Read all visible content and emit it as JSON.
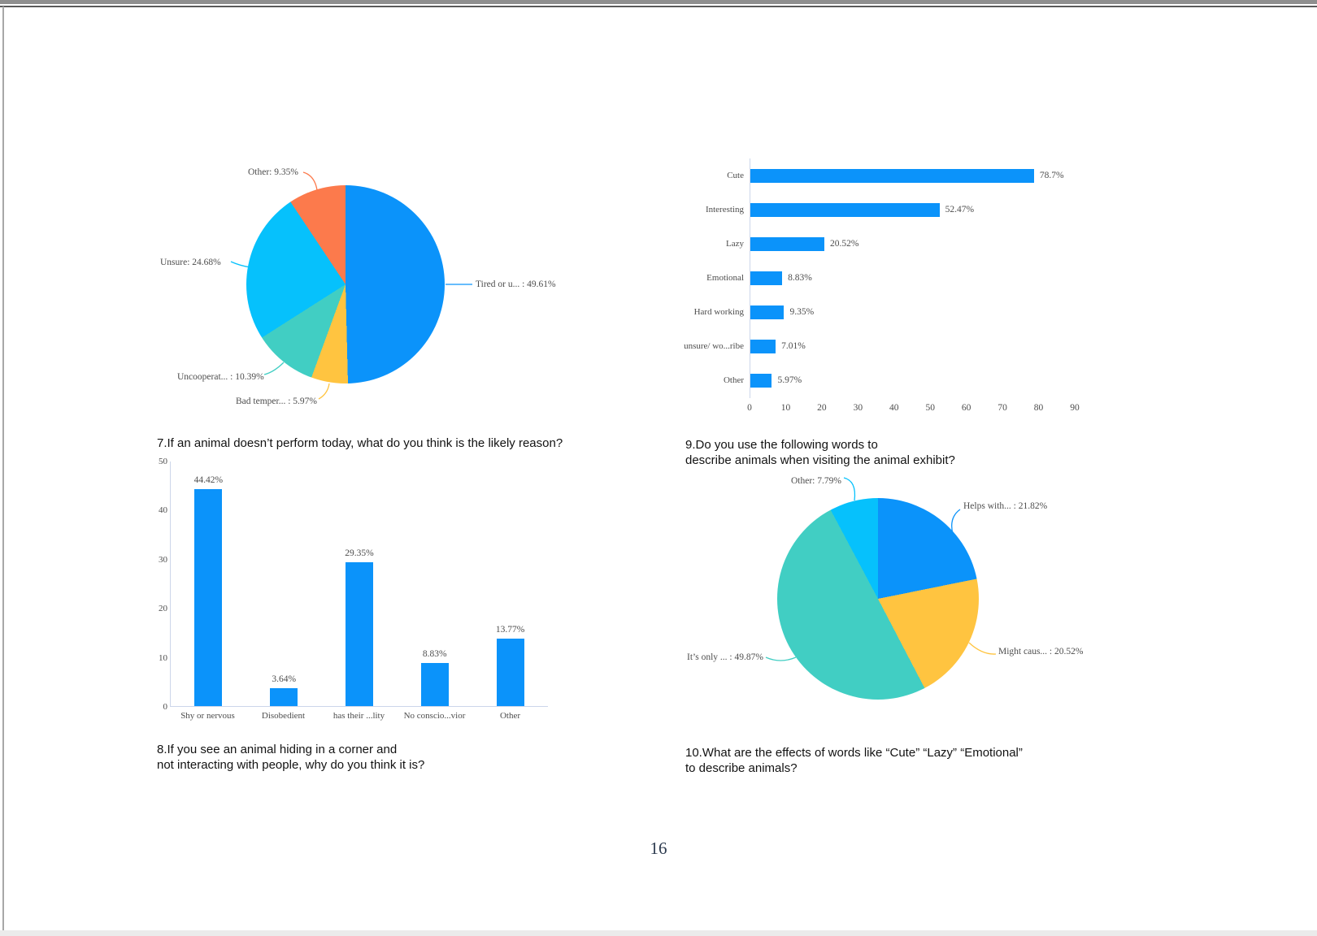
{
  "page": {
    "number": "16"
  },
  "questions": {
    "q7": "7.If an animal doesn’t perform today, what do you think is the likely reason?",
    "q8_line1": "8.If you see an animal hiding in a corner and",
    "q8_line2": "not interacting with people, why do you think it is?",
    "q9_line1": "9.Do you use the following words to",
    "q9_line2": "describe animals when visiting the animal exhibit?",
    "q10_line1": "10.What are the effects of words like “Cute” “Lazy” “Emotional”",
    "q10_line2": "to describe animals?"
  },
  "colors": {
    "blue": "#0b93fa",
    "cyan": "#06c1fc",
    "teal": "#41cec3",
    "yellow": "#ffc440",
    "orange": "#fc7a4c",
    "axis_line": "#ccd6ea",
    "chart_text": "#4d4d4d"
  },
  "chart_data": [
    {
      "id": "q7-pie",
      "type": "pie",
      "title": "7.If an animal doesn’t perform today, what do you think is the likely reason?",
      "direction": "clockwise",
      "start_angle_deg": 0,
      "slices": [
        {
          "label": "Tired or u... : 49.61%",
          "name": "Tired or u...",
          "value": 49.61,
          "color": "#0b93fa"
        },
        {
          "label": "Bad temper... : 5.97%",
          "name": "Bad temper...",
          "value": 5.97,
          "color": "#ffc440"
        },
        {
          "label": "Uncooperat... : 10.39%",
          "name": "Uncooperat...",
          "value": 10.39,
          "color": "#41cec3"
        },
        {
          "label": "Unsure: 24.68%",
          "name": "Unsure",
          "value": 24.68,
          "color": "#06c1fc"
        },
        {
          "label": "Other: 9.35%",
          "name": "Other",
          "value": 9.35,
          "color": "#fc7a4c"
        }
      ]
    },
    {
      "id": "q9-hbar",
      "type": "bar",
      "orientation": "horizontal",
      "title": "9.Do you use the following words to describe animals when visiting the animal exhibit?",
      "categories": [
        "Cute",
        "Interesting",
        "Lazy",
        "Emotional",
        "Hard working",
        "unsure/ wo...ribe",
        "Other"
      ],
      "values": [
        78.7,
        52.47,
        20.52,
        8.83,
        9.35,
        7.01,
        5.97
      ],
      "value_labels": [
        "78.7%",
        "52.47%",
        "20.52%",
        "8.83%",
        "9.35%",
        "7.01%",
        "5.97%"
      ],
      "xlim": [
        0,
        90
      ],
      "x_ticks": [
        "0",
        "10",
        "20",
        "30",
        "40",
        "50",
        "60",
        "70",
        "80",
        "90"
      ],
      "bar_color": "#0b93fa",
      "grid": false
    },
    {
      "id": "q8-vbar",
      "type": "bar",
      "orientation": "vertical",
      "title": "8.If you see an animal hiding in a corner and not interacting with people, why do you think it is?",
      "categories": [
        "Shy or nervous",
        "Disobedient",
        "has their ...lity",
        "No conscio...vior",
        "Other"
      ],
      "values": [
        44.42,
        3.64,
        29.35,
        8.83,
        13.77
      ],
      "value_labels": [
        "44.42%",
        "3.64%",
        "29.35%",
        "8.83%",
        "13.77%"
      ],
      "ylim": [
        0,
        50
      ],
      "y_ticks": [
        "50",
        "40",
        "30",
        "20",
        "10",
        "0"
      ],
      "bar_color": "#0b93fa",
      "grid": false
    },
    {
      "id": "q10-pie",
      "type": "pie",
      "title": "10.What are the effects of words like “Cute” “Lazy” “Emotional” to describe animals?",
      "direction": "clockwise",
      "start_angle_deg": 0,
      "slices": [
        {
          "label": "Helps with... : 21.82%",
          "name": "Helps with...",
          "value": 21.82,
          "color": "#0b93fa"
        },
        {
          "label": "Might caus... : 20.52%",
          "name": "Might caus...",
          "value": 20.52,
          "color": "#ffc440"
        },
        {
          "label": "It’s only ... : 49.87%",
          "name": "It’s only ...",
          "value": 49.87,
          "color": "#41cec3"
        },
        {
          "label": "Other: 7.79%",
          "name": "Other",
          "value": 7.79,
          "color": "#06c1fc"
        }
      ]
    }
  ]
}
